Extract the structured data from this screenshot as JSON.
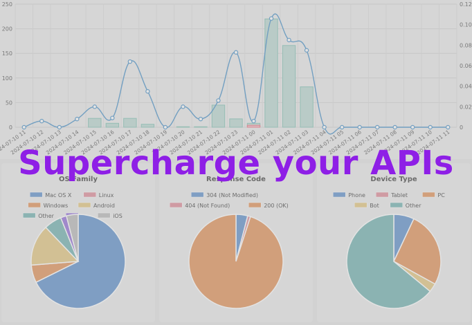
{
  "headline": "Supercharge your APIs",
  "colors": {
    "bar_fill": "#c9e0dc",
    "bar_stroke": "#9ccfc3",
    "red_fill": "#f6c7cd",
    "red_stroke": "#f08b98",
    "line": "#6fa8d4",
    "headline": "#8e1fe6",
    "blue": "#7fa7d6",
    "red": "#e6a3ad",
    "orange": "#e8a87a",
    "yellow": "#ead39a",
    "teal": "#8fc2c0",
    "purple": "#a98ce0",
    "gray": "#c8c8c8"
  },
  "chart_data": [
    {
      "type": "bar",
      "name": "requests-over-time",
      "categories": [
        "2024-07-10 11",
        "2024-07-10 12",
        "2024-07-10 13",
        "2024-07-10 14",
        "2024-07-10 15",
        "2024-07-10 16",
        "2024-07-10 17",
        "2024-07-10 18",
        "2024-07-10 19",
        "2024-07-10 20",
        "2024-07-10 21",
        "2024-07-10 22",
        "2024-07-10 23",
        "2024-07-11 00",
        "2024-07-11 01",
        "2024-07-11 02",
        "2024-07-11 03",
        "2024-07-11 04",
        "2024-07-11 05",
        "2024-07-11 06",
        "2024-07-11 07",
        "2024-07-11 08",
        "2024-07-11 09",
        "2024-07-11 10",
        "2024-07-11 11"
      ],
      "left_axis": {
        "ticks": [
          "0",
          "50",
          "100",
          "150",
          "200",
          "250"
        ],
        "ylim": [
          0,
          250
        ]
      },
      "right_axis": {
        "ticks": [
          "0",
          "0.02",
          "0.04",
          "0.06",
          "0.08",
          "0.10",
          "0.12"
        ],
        "ylim": [
          0,
          0.12
        ]
      },
      "series": [
        {
          "type": "bar",
          "axis": "left",
          "values": [
            0,
            0,
            0,
            0,
            18,
            8,
            18,
            6,
            0,
            1,
            1,
            45,
            17,
            8,
            220,
            166,
            82,
            0,
            0,
            0,
            0,
            0,
            0,
            0,
            0
          ]
        },
        {
          "type": "bar",
          "axis": "left",
          "color": "red",
          "values": [
            0,
            0,
            0,
            0,
            0,
            0,
            0,
            0,
            0,
            0,
            0,
            0,
            0,
            4,
            0,
            0,
            0,
            0,
            0,
            0,
            0,
            0,
            0,
            0,
            0
          ]
        },
        {
          "type": "line",
          "axis": "right",
          "values": [
            0,
            0.006,
            0,
            0.008,
            0.02,
            0.009,
            0.064,
            0.035,
            0,
            0.02,
            0.008,
            0.026,
            0.073,
            0.006,
            0.106,
            0.085,
            0.075,
            0,
            0,
            0,
            0,
            0,
            0,
            0,
            0
          ]
        }
      ]
    },
    {
      "type": "pie",
      "name": "os-family",
      "title": "OS Family",
      "legend": [
        {
          "label": "Mac OS X",
          "color": "blue"
        },
        {
          "label": "Linux",
          "color": "red"
        },
        {
          "label": "Windows",
          "color": "orange"
        },
        {
          "label": "Android",
          "color": "yellow"
        },
        {
          "label": "Other",
          "color": "teal"
        },
        {
          "label": "",
          "color": "purple"
        },
        {
          "label": "iOS",
          "color": "gray"
        }
      ],
      "values": [
        67,
        0,
        6,
        14,
        6,
        2,
        4
      ]
    },
    {
      "type": "pie",
      "name": "response-code",
      "title": "Response Code",
      "legend": [
        {
          "label": "304 (Not Modified)",
          "color": "blue"
        },
        {
          "label": "404 (Not Found)",
          "color": "red"
        },
        {
          "label": "200 (OK)",
          "color": "orange"
        }
      ],
      "values": [
        4,
        1,
        95
      ]
    },
    {
      "type": "pie",
      "name": "device-type",
      "title": "Device Type",
      "legend": [
        {
          "label": "Phone",
          "color": "blue"
        },
        {
          "label": "Tablet",
          "color": "red"
        },
        {
          "label": "PC",
          "color": "orange"
        },
        {
          "label": "Bot",
          "color": "yellow"
        },
        {
          "label": "Other",
          "color": "teal"
        }
      ],
      "values": [
        7,
        0,
        26,
        3,
        64
      ]
    }
  ]
}
